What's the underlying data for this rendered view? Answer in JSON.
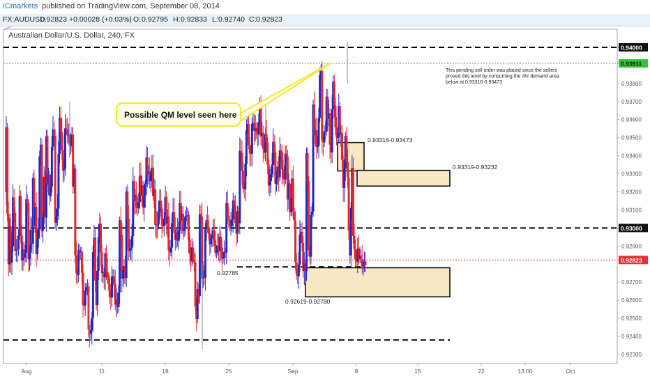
{
  "header": {
    "brand": "ICmarkets",
    "published": "published on TradingView.com, September 08, 2014"
  },
  "quote": {
    "symbol": "FX:AUDUSD",
    "last": "0.92823",
    "change": "+0.00028 (+0.03%)",
    "open_label": "O:",
    "open": "0.92795",
    "high_label": "H:",
    "high": "0.92833",
    "low_label": "L:",
    "low": "0.92740",
    "close_label": "C:",
    "close": "0.92823"
  },
  "colors": {
    "up": "#2128c9",
    "down": "#e8262a",
    "zone_fill": "#fae7c4",
    "callout_fill": "#fffde8",
    "callout_border": "#f2e632",
    "green_line": "#35c435",
    "price_tag_bg": "#e83030"
  },
  "chart_data": {
    "type": "candlestick",
    "title": "Australian Dollar/U.S. Dollar, 240, FX",
    "ylim": [
      0.9225,
      0.941
    ],
    "x_tick_labels": [
      "Aug",
      "11",
      "18",
      "25",
      "Sep",
      "8",
      "15",
      "22",
      "13:00",
      "Oct"
    ],
    "y_tick_labels": [
      "0.94000",
      "0.93911",
      "0.93800",
      "0.93700",
      "0.93600",
      "0.93500",
      "0.93400",
      "0.93300",
      "0.93200",
      "0.93100",
      "0.93000",
      "0.92900",
      "0.92823",
      "0.92700",
      "0.92600",
      "0.92500",
      "0.92400",
      "0.92300"
    ],
    "highlighted_y_labels": [
      "0.94000",
      "0.93911",
      "0.93000",
      "0.92823"
    ],
    "horizontal_lines": [
      {
        "price": 0.94,
        "style": "dashed",
        "color": "#000000"
      },
      {
        "price": 0.93911,
        "style": "dotted",
        "color": "#35c435"
      },
      {
        "price": 0.93,
        "style": "dashed",
        "color": "#000000"
      },
      {
        "price": 0.92823,
        "style": "dotted",
        "color": "#e8262a"
      },
      {
        "price": 0.92785,
        "style": "dashed",
        "color": "#000000"
      },
      {
        "price": 0.9238,
        "style": "dashed",
        "color": "#000000"
      }
    ],
    "zones": [
      {
        "label": "0.93316-0.93473",
        "low": 0.93316,
        "high": 0.93473
      },
      {
        "label": "0.93319-0.93232",
        "low": 0.93232,
        "high": 0.93319
      },
      {
        "label": "0.92619-0.92780",
        "low": 0.92619,
        "high": 0.9278
      }
    ],
    "level_labels": [
      "0.92785"
    ],
    "annotations": [
      "Possible QM level seen here",
      "This pending sell order was placed since the sellers proved this level by consuming the 4hr  demand area below at 0.93316-0.93473."
    ],
    "segments": [
      [
        0.9275,
        0.9365
      ],
      [
        0.9285,
        0.9325
      ],
      [
        0.928,
        0.932
      ],
      [
        0.928,
        0.9318
      ],
      [
        0.9282,
        0.935
      ],
      [
        0.9295,
        0.936
      ],
      [
        0.93,
        0.9375
      ],
      [
        0.93,
        0.9358
      ],
      [
        0.933,
        0.9365
      ],
      [
        0.9345,
        0.9355
      ],
      [
        0.927,
        0.935
      ],
      [
        0.9255,
        0.929
      ],
      [
        0.924,
        0.927
      ],
      [
        0.9255,
        0.93
      ],
      [
        0.927,
        0.9305
      ],
      [
        0.926,
        0.928
      ],
      [
        0.9255,
        0.9275
      ],
      [
        0.9265,
        0.931
      ],
      [
        0.9285,
        0.933
      ],
      [
        0.931,
        0.933
      ],
      [
        0.931,
        0.933
      ],
      [
        0.932,
        0.934
      ],
      [
        0.93,
        0.9325
      ],
      [
        0.93,
        0.932
      ],
      [
        0.9285,
        0.931
      ],
      [
        0.9292,
        0.931
      ],
      [
        0.9295,
        0.9315
      ],
      [
        0.928,
        0.931
      ],
      [
        0.9245,
        0.929
      ],
      [
        0.927,
        0.931
      ],
      [
        0.929,
        0.931
      ],
      [
        0.9285,
        0.93
      ],
      [
        0.9282,
        0.93
      ],
      [
        0.93,
        0.9315
      ],
      [
        0.9295,
        0.9325
      ],
      [
        0.932,
        0.9345
      ],
      [
        0.934,
        0.936
      ],
      [
        0.935,
        0.936
      ],
      [
        0.934,
        0.937
      ],
      [
        0.932,
        0.935
      ],
      [
        0.932,
        0.935
      ],
      [
        0.9325,
        0.9345
      ],
      [
        0.9305,
        0.9345
      ],
      [
        0.927,
        0.933
      ],
      [
        0.9272,
        0.93
      ],
      [
        0.928,
        0.9345
      ],
      [
        0.934,
        0.937
      ],
      [
        0.9345,
        0.939
      ],
      [
        0.934,
        0.9375
      ],
      [
        0.9348,
        0.939
      ],
      [
        0.932,
        0.9355
      ],
      [
        0.928,
        0.934
      ],
      [
        0.928,
        0.9298
      ],
      [
        0.9278,
        0.9285
      ]
    ]
  }
}
